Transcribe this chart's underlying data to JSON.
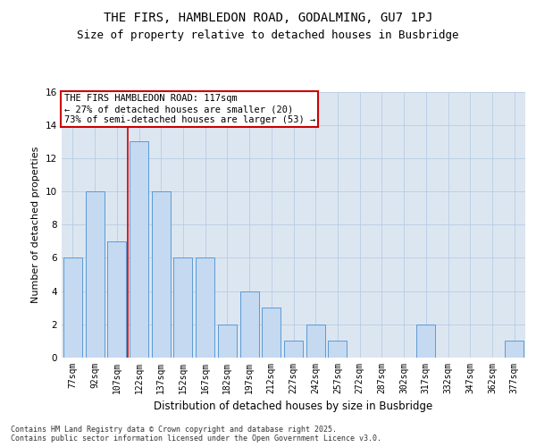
{
  "title1": "THE FIRS, HAMBLEDON ROAD, GODALMING, GU7 1PJ",
  "title2": "Size of property relative to detached houses in Busbridge",
  "xlabel": "Distribution of detached houses by size in Busbridge",
  "ylabel": "Number of detached properties",
  "categories": [
    "77sqm",
    "92sqm",
    "107sqm",
    "122sqm",
    "137sqm",
    "152sqm",
    "167sqm",
    "182sqm",
    "197sqm",
    "212sqm",
    "227sqm",
    "242sqm",
    "257sqm",
    "272sqm",
    "287sqm",
    "302sqm",
    "317sqm",
    "332sqm",
    "347sqm",
    "362sqm",
    "377sqm"
  ],
  "values": [
    6,
    10,
    7,
    13,
    10,
    6,
    6,
    2,
    4,
    3,
    1,
    2,
    1,
    0,
    0,
    0,
    2,
    0,
    0,
    0,
    1
  ],
  "bar_color": "#c5d9f0",
  "bar_edge_color": "#5b9bd5",
  "annotation_text": "THE FIRS HAMBLEDON ROAD: 117sqm\n← 27% of detached houses are smaller (20)\n73% of semi-detached houses are larger (53) →",
  "annotation_box_color": "#ffffff",
  "annotation_box_edge": "#cc0000",
  "vline_x": 2.5,
  "vline_color": "#cc0000",
  "ylim": [
    0,
    16
  ],
  "yticks": [
    0,
    2,
    4,
    6,
    8,
    10,
    12,
    14,
    16
  ],
  "grid_color": "#b8cce4",
  "background_color": "#dce6f1",
  "footer": "Contains HM Land Registry data © Crown copyright and database right 2025.\nContains public sector information licensed under the Open Government Licence v3.0.",
  "title_fontsize": 10,
  "subtitle_fontsize": 9,
  "tick_fontsize": 7,
  "ylabel_fontsize": 8,
  "xlabel_fontsize": 8.5,
  "annotation_fontsize": 7.5,
  "footer_fontsize": 6
}
